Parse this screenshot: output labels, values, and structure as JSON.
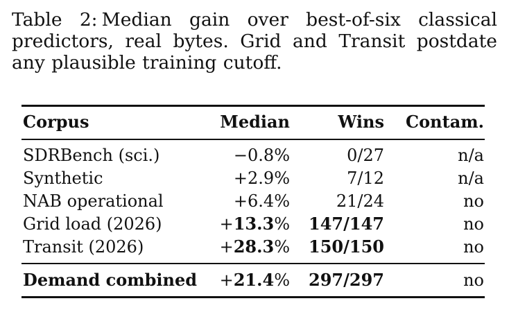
{
  "caption": {
    "label": "Table 2:",
    "text": "Median gain over best-of-six classical predictors, real bytes. Grid and Transit postdate any plausible training cutoff."
  },
  "table": {
    "headers": {
      "corpus": "Corpus",
      "median": "Median",
      "wins": "Wins",
      "contam": "Contam."
    },
    "rows": [
      {
        "corpus": "SDRBench (sci.)",
        "median_sign": "−",
        "median_num": "0.8",
        "median_pct": "%",
        "wins": "0/27",
        "contam": "n/a"
      },
      {
        "corpus": "Synthetic",
        "median_sign": "+",
        "median_num": "2.9",
        "median_pct": "%",
        "wins": "7/12",
        "contam": "n/a"
      },
      {
        "corpus": "NAB operational",
        "median_sign": "+",
        "median_num": "6.4",
        "median_pct": "%",
        "wins": "21/24",
        "contam": "no"
      },
      {
        "corpus": "Grid load (2026)",
        "median_sign": "+",
        "median_num": "13.3",
        "median_pct": "%",
        "wins": "147/147",
        "contam": "no"
      },
      {
        "corpus": "Transit (2026)",
        "median_sign": "+",
        "median_num": "28.3",
        "median_pct": "%",
        "wins": "150/150",
        "contam": "no"
      }
    ],
    "total": {
      "corpus": "Demand combined",
      "median_sign": "+",
      "median_num": "21.4",
      "median_pct": "%",
      "wins": "297/297",
      "contam": "no"
    }
  }
}
